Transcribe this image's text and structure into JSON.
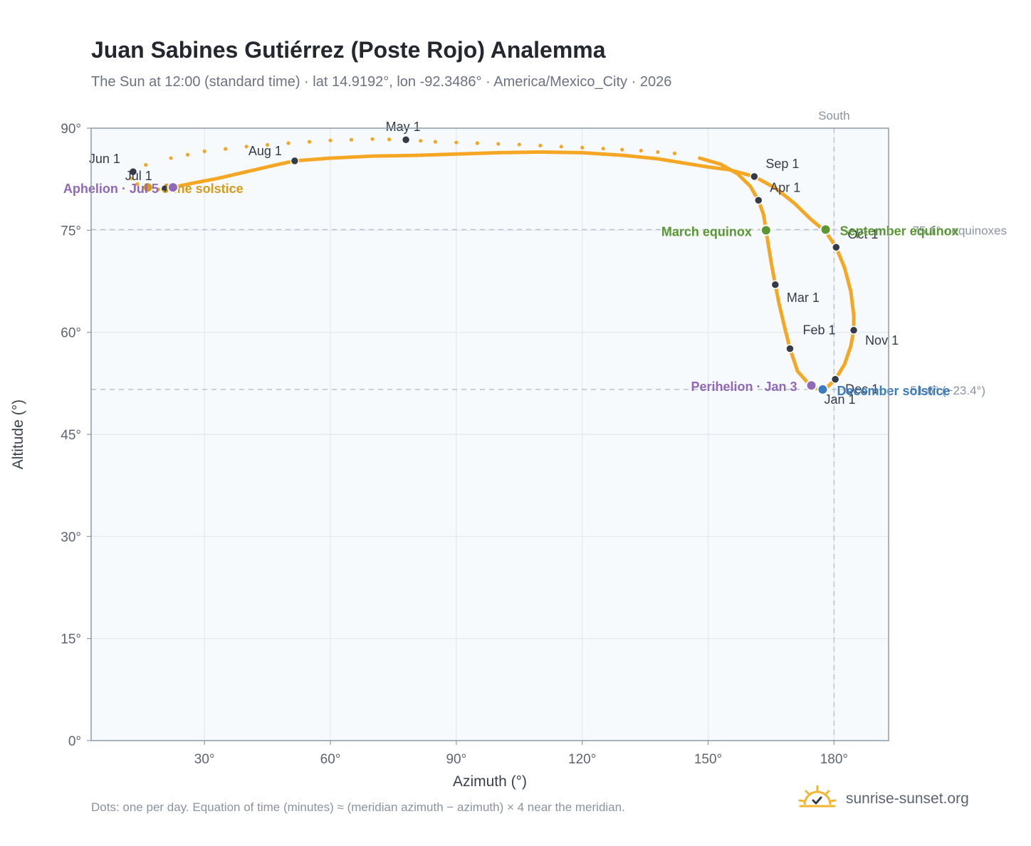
{
  "title": "Juan Sabines Gutiérrez (Poste Rojo) Analemma",
  "subtitle": "The Sun at 12:00 (standard time) · lat 14.9192°, lon -92.3486° · America/Mexico_City · 2026",
  "footnote": "Dots: one per day. Equation of time (minutes) ≈ (meridian azimuth − azimuth) × 4 near the meridian.",
  "brand": "sunrise-sunset.org",
  "chart_data": {
    "type": "scatter",
    "xlabel": "Azimuth (°)",
    "ylabel": "Altitude (°)",
    "xlim": [
      3,
      193
    ],
    "ylim": [
      0,
      90
    ],
    "xticks": [
      30,
      60,
      90,
      120,
      150,
      180
    ],
    "xtick_labels": [
      "30°",
      "60°",
      "90°",
      "120°",
      "150°",
      "180°"
    ],
    "yticks": [
      0,
      15,
      30,
      45,
      60,
      75,
      90
    ],
    "ytick_labels": [
      "0°",
      "15°",
      "30°",
      "45°",
      "60°",
      "75°",
      "90°"
    ],
    "grid": true,
    "south_line": {
      "x": 180,
      "label": "South"
    },
    "equinox_line": {
      "y": 75.1,
      "label": "75.1° · equinoxes"
    },
    "december_line": {
      "y": 51.6,
      "label": "51.6° (−23.4°)"
    },
    "colors": {
      "path": "#f5a623",
      "month_marker": "#343a46",
      "equinox": "#5a9632",
      "june_solstice": "#d69a1c",
      "december_solstice": "#3a7cc0",
      "apsis": "#9168b8",
      "plot_bg": "#f7fafd",
      "grid": "#e3e8ee",
      "frame": "#8f9aa8",
      "ref_line": "#b9c3cf"
    },
    "analemma_path": [
      [
        176.0,
        51.7
      ],
      [
        174.0,
        52.4
      ],
      [
        171.3,
        54.3
      ],
      [
        169.5,
        57.6
      ],
      [
        168.2,
        60.8
      ],
      [
        166.9,
        64.2
      ],
      [
        166.0,
        67.0
      ],
      [
        165.1,
        70.0
      ],
      [
        164.3,
        73.0
      ],
      [
        163.8,
        75.0
      ],
      [
        163.2,
        77.3
      ],
      [
        162.0,
        79.4
      ],
      [
        160.0,
        81.5
      ],
      [
        157.0,
        83.3
      ],
      [
        153.0,
        84.7
      ],
      [
        148.0,
        85.6
      ],
      [
        142.0,
        86.3
      ],
      [
        134.0,
        86.7
      ],
      [
        125.0,
        87.0
      ],
      [
        115.0,
        87.3
      ],
      [
        105.0,
        87.6
      ],
      [
        95.0,
        87.8
      ],
      [
        85.0,
        88.0
      ],
      [
        78.0,
        88.3
      ],
      [
        70.0,
        88.4
      ],
      [
        60.0,
        88.2
      ],
      [
        50.0,
        87.8
      ],
      [
        40.0,
        87.3
      ],
      [
        30.0,
        86.6
      ],
      [
        22.0,
        85.6
      ],
      [
        16.0,
        84.6
      ],
      [
        13.0,
        83.6
      ],
      [
        12.6,
        82.6
      ],
      [
        14.0,
        81.8
      ],
      [
        16.5,
        81.3
      ],
      [
        19.0,
        81.0
      ],
      [
        20.6,
        81.1
      ],
      [
        22.5,
        81.3
      ],
      [
        27.0,
        81.9
      ],
      [
        33.0,
        82.6
      ],
      [
        40.0,
        83.6
      ],
      [
        47.0,
        84.6
      ],
      [
        51.5,
        85.2
      ],
      [
        60.0,
        85.6
      ],
      [
        70.0,
        85.9
      ],
      [
        80.0,
        86.0
      ],
      [
        90.0,
        86.2
      ],
      [
        100.0,
        86.4
      ],
      [
        110.0,
        86.5
      ],
      [
        120.0,
        86.4
      ],
      [
        130.0,
        86.0
      ],
      [
        138.0,
        85.5
      ],
      [
        144.0,
        84.9
      ],
      [
        150.0,
        84.3
      ],
      [
        155.0,
        83.9
      ],
      [
        161.0,
        82.9
      ],
      [
        166.0,
        81.2
      ],
      [
        170.5,
        79.0
      ],
      [
        174.5,
        76.6
      ],
      [
        178.0,
        74.8
      ],
      [
        180.5,
        72.5
      ],
      [
        182.5,
        69.5
      ],
      [
        184.0,
        66.0
      ],
      [
        184.7,
        62.5
      ],
      [
        184.7,
        60.3
      ],
      [
        184.0,
        58.0
      ],
      [
        182.5,
        55.3
      ],
      [
        180.3,
        53.1
      ],
      [
        178.5,
        52.0
      ],
      [
        177.3,
        51.6
      ],
      [
        176.0,
        51.7
      ]
    ],
    "sparse_segments": [
      [
        15,
        36
      ]
    ],
    "month_markers": [
      {
        "label": "Jan 1",
        "x": 177.3,
        "y": 51.6
      },
      {
        "label": "Feb 1",
        "x": 169.5,
        "y": 57.6
      },
      {
        "label": "Mar 1",
        "x": 166.0,
        "y": 67.0
      },
      {
        "label": "Apr 1",
        "x": 162.0,
        "y": 79.4
      },
      {
        "label": "May 1",
        "x": 78.0,
        "y": 88.3
      },
      {
        "label": "Jun 1",
        "x": 13.0,
        "y": 83.6
      },
      {
        "label": "Jul 1",
        "x": 20.6,
        "y": 81.1
      },
      {
        "label": "Aug 1",
        "x": 51.5,
        "y": 85.2
      },
      {
        "label": "Sep 1",
        "x": 161.0,
        "y": 82.9
      },
      {
        "label": "Oct 1",
        "x": 180.5,
        "y": 72.5
      },
      {
        "label": "Nov 1",
        "x": 184.7,
        "y": 60.3
      },
      {
        "label": "Dec 1",
        "x": 180.3,
        "y": 53.1
      }
    ],
    "events": [
      {
        "label": "March equinox",
        "x": 163.8,
        "y": 75.0,
        "kind": "equinox"
      },
      {
        "label": "September equinox",
        "x": 178.0,
        "y": 75.1,
        "kind": "equinox"
      },
      {
        "label": "June solstice",
        "x": 16.5,
        "y": 81.3,
        "kind": "june_solstice"
      },
      {
        "label": "December solstice",
        "x": 177.3,
        "y": 51.6,
        "kind": "december_solstice"
      },
      {
        "label": "Perihelion · Jan 3",
        "x": 174.6,
        "y": 52.2,
        "kind": "apsis"
      },
      {
        "label": "Aphelion · Jul 5",
        "x": 22.5,
        "y": 81.3,
        "kind": "apsis"
      }
    ]
  }
}
